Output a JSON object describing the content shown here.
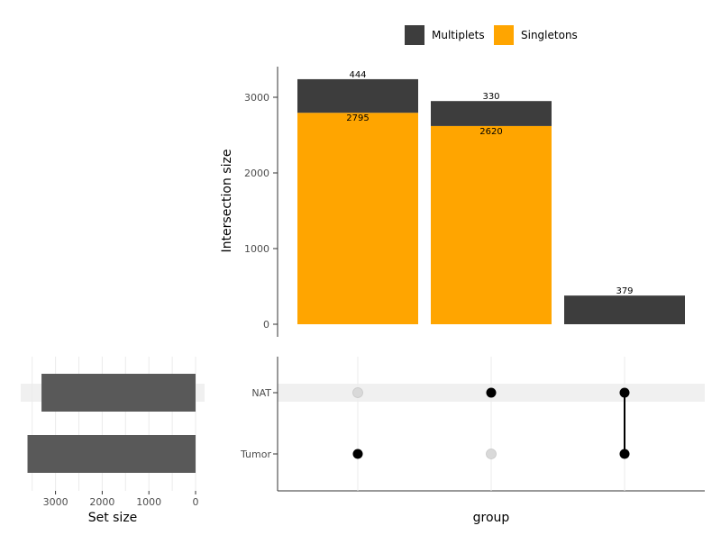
{
  "chart_data": {
    "type": "upset",
    "legend": {
      "placement": "top",
      "items": [
        {
          "name": "Multiplets",
          "color": "#3d3d3d"
        },
        {
          "name": "Singletons",
          "color": "#ffa500"
        }
      ]
    },
    "intersection_bars": {
      "ylabel": "Intersection size",
      "ylim": [
        0,
        3300
      ],
      "yticks": [
        0,
        1000,
        2000,
        3000
      ],
      "yticks_labels": [
        "0",
        "1000",
        "2000",
        "3000"
      ],
      "bars": [
        {
          "singletons": 2795,
          "multiplets": 444,
          "singletons_label": "2795",
          "multiplets_label": "444"
        },
        {
          "singletons": 2620,
          "multiplets": 330,
          "singletons_label": "2620",
          "multiplets_label": "330"
        },
        {
          "singletons": 0,
          "multiplets": 379,
          "singletons_label": "",
          "multiplets_label": "379"
        }
      ]
    },
    "sets": [
      "NAT",
      "Tumor"
    ],
    "matrix": [
      {
        "NAT": false,
        "Tumor": true
      },
      {
        "NAT": true,
        "Tumor": false
      },
      {
        "NAT": true,
        "Tumor": true
      }
    ],
    "matrix_xlabel": "group",
    "set_size": {
      "xlabel": "Set size",
      "values": [
        3300,
        3600
      ],
      "xlim": [
        0,
        3600
      ],
      "xticks": [
        3000,
        2000,
        1000,
        0
      ],
      "xticks_labels": [
        "3000",
        "2000",
        "1000",
        "0"
      ]
    },
    "colors": {
      "singletons": "#ffa500",
      "multiplets": "#3d3d3d",
      "set_bar": "#595959",
      "dot_active": "#000000",
      "dot_inactive": "#d9d9d9",
      "stripe": "#f0f0f0"
    }
  }
}
